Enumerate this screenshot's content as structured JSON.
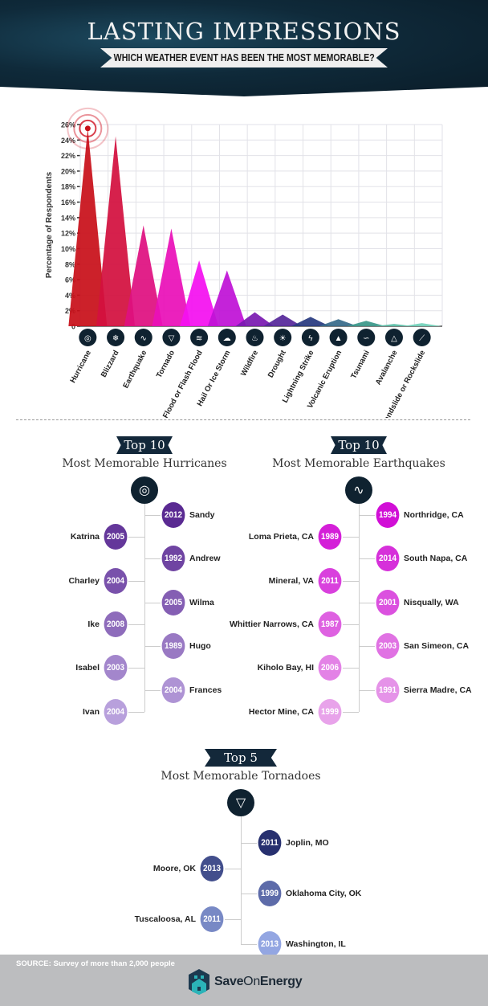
{
  "header": {
    "title": "LASTING IMPRESSIONS",
    "subtitle": "WHICH WEATHER EVENT HAS BEEN THE MOST MEMORABLE?"
  },
  "chart_data": {
    "type": "area",
    "ylabel": "Percentage of Respondents",
    "xlabel": "",
    "ylim": [
      0,
      26
    ],
    "yticks": [
      "0",
      "2%",
      "4%",
      "6%",
      "8%",
      "10%",
      "12%",
      "14%",
      "16%",
      "18%",
      "20%",
      "22%",
      "24%",
      "26%"
    ],
    "grid": true,
    "categories": [
      "Hurricane",
      "Blizzard",
      "Earthquake",
      "Tornado",
      "Flood or Flash Flood",
      "Hail Or Ice Storm",
      "Wildfire",
      "Drought",
      "Lightning Strike",
      "Volcanic Eruption",
      "Tsunami",
      "Avalanche",
      "Landslide or Rockslide"
    ],
    "values": [
      25.5,
      24.5,
      13.0,
      12.6,
      8.5,
      7.2,
      1.8,
      1.5,
      1.2,
      0.9,
      0.7,
      0.3,
      0.4
    ],
    "colors": [
      "#c8101a",
      "#d3103e",
      "#df1080",
      "#ea10b8",
      "#f410f0",
      "#bf12d6",
      "#7a1ab0",
      "#56289a",
      "#283a80",
      "#386a8a",
      "#3a988a",
      "#5cbfa8",
      "#72d2ba"
    ],
    "icons": [
      "hurricane-icon",
      "blizzard-icon",
      "earthquake-icon",
      "tornado-icon",
      "flood-icon",
      "hail-icon",
      "wildfire-icon",
      "drought-icon",
      "lightning-icon",
      "volcano-icon",
      "tsunami-icon",
      "avalanche-icon",
      "landslide-icon"
    ],
    "highlight": "Hurricane"
  },
  "hurricanes": {
    "badge": "Top 10",
    "title": "Most Memorable Hurricanes",
    "icon": "hurricane-icon",
    "colors": [
      "#5a2a92",
      "#b8a0dc"
    ],
    "items": [
      {
        "year": "2012",
        "name": "Sandy"
      },
      {
        "year": "2005",
        "name": "Katrina"
      },
      {
        "year": "1992",
        "name": "Andrew"
      },
      {
        "year": "2004",
        "name": "Charley"
      },
      {
        "year": "2005",
        "name": "Wilma"
      },
      {
        "year": "2008",
        "name": "Ike"
      },
      {
        "year": "1989",
        "name": "Hugo"
      },
      {
        "year": "2003",
        "name": "Isabel"
      },
      {
        "year": "2004",
        "name": "Frances"
      },
      {
        "year": "2004",
        "name": "Ivan"
      }
    ]
  },
  "earthquakes": {
    "badge": "Top 10",
    "title": "Most Memorable Earthquakes",
    "icon": "earthquake-icon",
    "colors": [
      "#d10fd6",
      "#e8a3ea"
    ],
    "items": [
      {
        "year": "1994",
        "name": "Northridge, CA"
      },
      {
        "year": "1989",
        "name": "Loma Prieta, CA"
      },
      {
        "year": "2014",
        "name": "South Napa, CA"
      },
      {
        "year": "2011",
        "name": "Mineral, VA"
      },
      {
        "year": "2001",
        "name": "Nisqually, WA"
      },
      {
        "year": "1987",
        "name": "Whittier Narrows, CA"
      },
      {
        "year": "2003",
        "name": "San Simeon, CA"
      },
      {
        "year": "2006",
        "name": "Kiholo Bay, HI"
      },
      {
        "year": "1991",
        "name": "Sierra Madre, CA"
      },
      {
        "year": "1999",
        "name": "Hector Mine, CA"
      }
    ]
  },
  "tornadoes": {
    "badge": "Top 5",
    "title": "Most Memorable Tornadoes",
    "icon": "tornado-icon",
    "colors": [
      "#27306f",
      "#93a6e2"
    ],
    "items": [
      {
        "year": "2011",
        "name": "Joplin, MO"
      },
      {
        "year": "2013",
        "name": "Moore, OK"
      },
      {
        "year": "1999",
        "name": "Oklahoma City, OK"
      },
      {
        "year": "2011",
        "name": "Tuscaloosa, AL"
      },
      {
        "year": "2013",
        "name": "Washington, IL"
      }
    ]
  },
  "footer": {
    "source": "SOURCE: Survey of more than 2,000 people",
    "logo_bold": "Save",
    "logo_light": "On",
    "logo_end": "Energy"
  }
}
